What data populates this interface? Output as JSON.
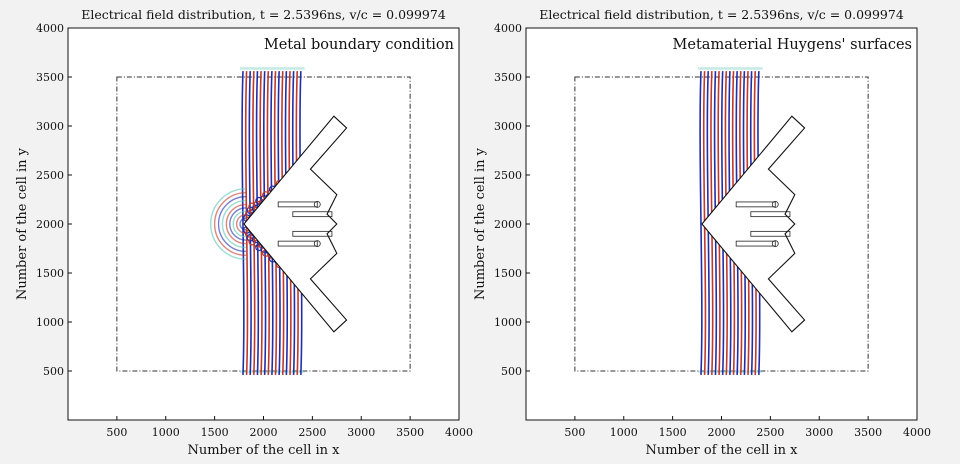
{
  "chart_data": [
    {
      "type": "heatmap",
      "title": "Electrical field distribution, t = 2.5396ns, v/c = 0.099974",
      "annotation": "Metal boundary condition",
      "xlabel": "Number of the cell in x",
      "ylabel": "Number of the cell in y",
      "xlim": [
        0,
        4000
      ],
      "ylim": [
        0,
        4000
      ],
      "xticks": [
        500,
        1000,
        1500,
        2000,
        2500,
        3000,
        3500,
        4000
      ],
      "yticks": [
        500,
        1000,
        1500,
        2000,
        2500,
        3000,
        3500,
        4000
      ],
      "grid": false,
      "scattered_wave": true
    },
    {
      "type": "heatmap",
      "title": "Electrical field distribution, t = 2.5396ns, v/c = 0.099974",
      "annotation": "Metamaterial Huygens' surfaces",
      "xlabel": "Number of the cell in x",
      "ylabel": "Number of the cell in y",
      "xlim": [
        0,
        4000
      ],
      "ylim": [
        0,
        4000
      ],
      "xticks": [
        500,
        1000,
        1500,
        2000,
        2500,
        3000,
        3500,
        4000
      ],
      "yticks": [
        500,
        1000,
        1500,
        2000,
        2500,
        3000,
        3500,
        4000
      ],
      "grid": false,
      "scattered_wave": false
    }
  ],
  "colors": {
    "field_positive": "#c0392b",
    "field_negative": "#1f2fa8",
    "field_weak": "#59c4b8",
    "outline": "#111111"
  }
}
